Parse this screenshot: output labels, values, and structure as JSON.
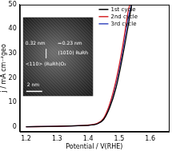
{
  "chart_data": {
    "type": "line",
    "x_label": "Potential / V(RHE)",
    "y_label": "j / mA cm⁻²geo",
    "xlim": [
      1.18,
      1.66
    ],
    "xticks": [
      1.2,
      1.3,
      1.4,
      1.5,
      1.6
    ],
    "ylim": [
      -2,
      50
    ],
    "yticks": [
      0,
      10,
      20,
      30,
      40,
      50
    ],
    "grid": false,
    "legend": "upper center",
    "series": [
      {
        "name": "1st cycle",
        "color": "#000000",
        "x": [
          1.2,
          1.3,
          1.4,
          1.43,
          1.45,
          1.47,
          1.49,
          1.51,
          1.53,
          1.54
        ],
        "values": [
          0,
          0.2,
          0.6,
          1.2,
          3,
          8,
          16,
          28,
          42,
          50
        ]
      },
      {
        "name": "2nd cycle",
        "color": "#d62728",
        "x": [
          1.2,
          1.3,
          1.4,
          1.43,
          1.45,
          1.47,
          1.49,
          1.51,
          1.53,
          1.535
        ],
        "values": [
          0,
          0.2,
          0.7,
          1.4,
          3.5,
          9.5,
          19,
          32,
          48,
          50
        ]
      },
      {
        "name": "3rd cycle",
        "color": "#3b4cc0",
        "x": [
          1.2,
          1.3,
          1.4,
          1.43,
          1.45,
          1.47,
          1.49,
          1.51,
          1.53,
          1.54
        ],
        "values": [
          0,
          0.2,
          0.6,
          1.3,
          3.2,
          9,
          18,
          30,
          45,
          50
        ]
      }
    ],
    "inset": {
      "texts": [
        "0.32 nm",
        "0.23 nm",
        "(101̄0) RuRh",
        "<110> (RuRh)O₂",
        "2 nm"
      ]
    }
  }
}
